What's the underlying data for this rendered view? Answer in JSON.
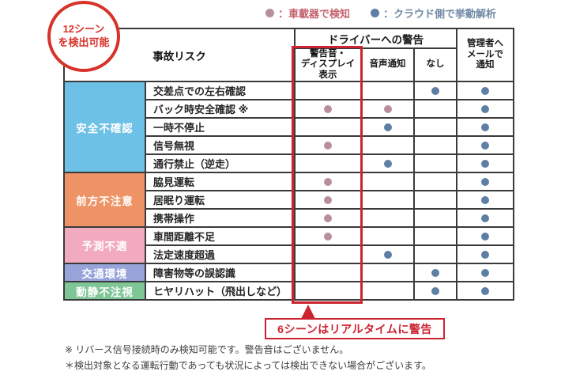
{
  "badge": {
    "text": "12シーン\nを検出可能"
  },
  "legend": [
    {
      "label": "：車載器で検知",
      "dot": "pink"
    },
    {
      "label": "：クラウド側で挙動解析",
      "dot": "blue"
    }
  ],
  "table": {
    "headers": {
      "risk": "事故リスク",
      "driver_warning": "ドライバーへの警告",
      "admin": "管理者へ\nメールで\n通知",
      "alert": "警告音・\nディスプレイ\n表示",
      "voice": "音声通知",
      "none": "なし"
    },
    "categories": [
      {
        "label": "安全不確認",
        "color": "#6ec1e6",
        "rows": 5
      },
      {
        "label": "前方不注意",
        "color": "#ee9366",
        "rows": 3
      },
      {
        "label": "予測不適",
        "color": "#f2aabf",
        "rows": 2
      },
      {
        "label": "交通環境",
        "color": "#97a4da",
        "rows": 1
      },
      {
        "label": "動静不注視",
        "color": "#7fc697",
        "rows": 1
      }
    ],
    "rows": [
      {
        "label": "交差点での左右確認",
        "alert": null,
        "voice": null,
        "none": "blue",
        "mail": "blue"
      },
      {
        "label": "バック時安全確認 ※",
        "alert": "pink",
        "voice": "pink",
        "none": null,
        "mail": "blue"
      },
      {
        "label": "一時不停止",
        "alert": null,
        "voice": "blue",
        "none": null,
        "mail": "blue"
      },
      {
        "label": "信号無視",
        "alert": "pink",
        "voice": null,
        "none": null,
        "mail": "blue"
      },
      {
        "label": "通行禁止（逆走）",
        "alert": null,
        "voice": "blue",
        "none": null,
        "mail": "blue"
      },
      {
        "label": "脇見運転",
        "alert": "pink",
        "voice": null,
        "none": null,
        "mail": "blue"
      },
      {
        "label": "居眠り運転",
        "alert": "pink",
        "voice": null,
        "none": null,
        "mail": "blue"
      },
      {
        "label": "携帯操作",
        "alert": "pink",
        "voice": null,
        "none": null,
        "mail": "blue"
      },
      {
        "label": "車間距離不足",
        "alert": "pink",
        "voice": null,
        "none": null,
        "mail": "blue"
      },
      {
        "label": "法定速度超過",
        "alert": null,
        "voice": "blue",
        "none": null,
        "mail": "blue"
      },
      {
        "label": "障害物等の誤認識",
        "alert": null,
        "voice": null,
        "none": "blue",
        "mail": "blue"
      },
      {
        "label": "ヒヤリハット（飛出しなど）",
        "alert": null,
        "voice": null,
        "none": "blue",
        "mail": "blue"
      }
    ]
  },
  "callout": "6シーンはリアルタイムに警告",
  "footnotes": [
    "※ リバース信号接続時のみ検知可能です。警告音はございません。",
    "＊検出対象となる運転行動であっても状況によっては検出できない場合がございます。"
  ],
  "colors": {
    "pink_dot": "#b98e9c",
    "blue_dot": "#5d7fa4",
    "red_accent": "#cb2430",
    "legend_pink_text": "#c4626e",
    "legend_blue_text": "#7189a5",
    "table_border": "#3a3a3a"
  }
}
